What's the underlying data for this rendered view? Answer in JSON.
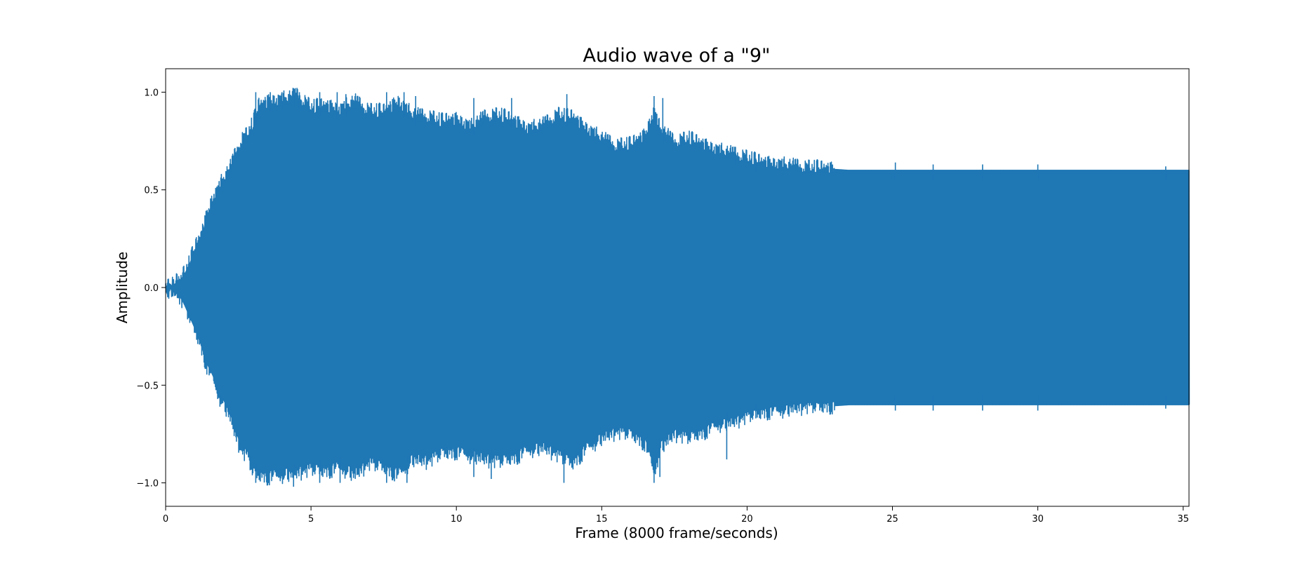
{
  "chart_data": {
    "type": "line",
    "title": "Audio wave of a \"9\"",
    "xlabel": "Frame (8000 frame/seconds)",
    "ylabel": "Amplitude",
    "xlim": [
      0,
      35.2
    ],
    "ylim": [
      -1.12,
      1.12
    ],
    "xticks": [
      0,
      5,
      10,
      15,
      20,
      25,
      30,
      35
    ],
    "xtick_labels": [
      "0",
      "5",
      "10",
      "15",
      "20",
      "25",
      "30",
      "35"
    ],
    "yticks": [
      -1.0,
      -0.5,
      0.0,
      0.5,
      1.0
    ],
    "ytick_labels": [
      "−1.0",
      "−0.5",
      "0.0",
      "0.5",
      "1.0"
    ],
    "grid": false,
    "series": [
      {
        "color": "#1f77b4",
        "envelope": {
          "x": [
            0,
            0.2,
            0.4,
            0.6,
            0.8,
            1.0,
            1.2,
            1.4,
            1.6,
            1.8,
            2.0,
            2.2,
            2.4,
            2.6,
            2.8,
            3.0,
            3.2,
            3.5,
            4.0,
            4.5,
            5.0,
            5.5,
            6.0,
            6.5,
            7.0,
            7.5,
            8.0,
            8.5,
            9.0,
            9.5,
            10.0,
            10.5,
            11.0,
            11.5,
            12.0,
            12.5,
            13.0,
            13.5,
            14.0,
            14.5,
            15.0,
            15.5,
            16.0,
            16.5,
            16.8,
            17.0,
            17.5,
            18.0,
            18.5,
            19.0,
            19.5,
            20.0,
            20.5,
            21.0,
            21.5,
            22.0,
            22.5,
            23.0,
            23.5,
            24.0,
            25.0,
            30.0,
            35.2
          ],
          "upper": [
            0.01,
            0.01,
            0.03,
            0.06,
            0.12,
            0.2,
            0.26,
            0.36,
            0.45,
            0.5,
            0.56,
            0.6,
            0.68,
            0.75,
            0.78,
            0.84,
            0.93,
            0.95,
            0.96,
            0.98,
            0.92,
            0.93,
            0.91,
            0.95,
            0.9,
            0.9,
            0.95,
            0.88,
            0.87,
            0.85,
            0.86,
            0.82,
            0.87,
            0.88,
            0.85,
            0.81,
            0.83,
            0.88,
            0.87,
            0.81,
            0.76,
            0.72,
            0.73,
            0.78,
            0.9,
            0.81,
            0.74,
            0.76,
            0.73,
            0.7,
            0.68,
            0.66,
            0.64,
            0.63,
            0.62,
            0.61,
            0.61,
            0.605,
            0.6,
            0.6,
            0.6,
            0.6,
            0.6
          ],
          "lower": [
            -0.01,
            -0.01,
            -0.03,
            -0.08,
            -0.15,
            -0.22,
            -0.3,
            -0.4,
            -0.46,
            -0.55,
            -0.6,
            -0.66,
            -0.76,
            -0.84,
            -0.86,
            -0.95,
            -0.96,
            -0.97,
            -0.96,
            -0.95,
            -0.93,
            -0.94,
            -0.92,
            -0.96,
            -0.9,
            -0.92,
            -0.96,
            -0.88,
            -0.89,
            -0.85,
            -0.84,
            -0.86,
            -0.88,
            -0.89,
            -0.87,
            -0.83,
            -0.82,
            -0.86,
            -0.9,
            -0.82,
            -0.77,
            -0.74,
            -0.75,
            -0.8,
            -0.95,
            -0.82,
            -0.75,
            -0.77,
            -0.74,
            -0.7,
            -0.69,
            -0.66,
            -0.64,
            -0.63,
            -0.62,
            -0.61,
            -0.61,
            -0.605,
            -0.6,
            -0.6,
            -0.6,
            -0.6,
            -0.6
          ]
        },
        "peaks_upper": [
          [
            3.1,
            1.0
          ],
          [
            3.6,
            1.0
          ],
          [
            4.0,
            1.0
          ],
          [
            4.4,
            1.02
          ],
          [
            4.6,
            1.0
          ],
          [
            5.3,
            1.0
          ],
          [
            5.9,
            1.0
          ],
          [
            6.2,
            0.99
          ],
          [
            7.6,
            1.0
          ],
          [
            8.2,
            1.0
          ],
          [
            8.6,
            0.98
          ],
          [
            10.6,
            0.97
          ],
          [
            11.9,
            0.97
          ],
          [
            13.8,
            0.99
          ],
          [
            16.8,
            0.98
          ],
          [
            17.1,
            0.97
          ],
          [
            19.6,
            0.72
          ],
          [
            20.3,
            0.66
          ],
          [
            25.1,
            0.64
          ],
          [
            26.4,
            0.63
          ],
          [
            28.1,
            0.63
          ],
          [
            30.0,
            0.63
          ],
          [
            34.4,
            0.62
          ]
        ],
        "peaks_lower": [
          [
            3.1,
            -1.0
          ],
          [
            4.4,
            -1.02
          ],
          [
            5.3,
            -1.0
          ],
          [
            6.0,
            -1.0
          ],
          [
            7.6,
            -1.0
          ],
          [
            8.3,
            -1.0
          ],
          [
            10.6,
            -0.97
          ],
          [
            11.2,
            -0.98
          ],
          [
            13.7,
            -1.0
          ],
          [
            16.8,
            -1.0
          ],
          [
            17.0,
            -0.97
          ],
          [
            19.3,
            -0.88
          ],
          [
            20.3,
            -0.67
          ],
          [
            25.1,
            -0.63
          ],
          [
            26.4,
            -0.63
          ],
          [
            28.1,
            -0.63
          ],
          [
            30.0,
            -0.63
          ],
          [
            34.4,
            -0.62
          ]
        ]
      }
    ]
  }
}
